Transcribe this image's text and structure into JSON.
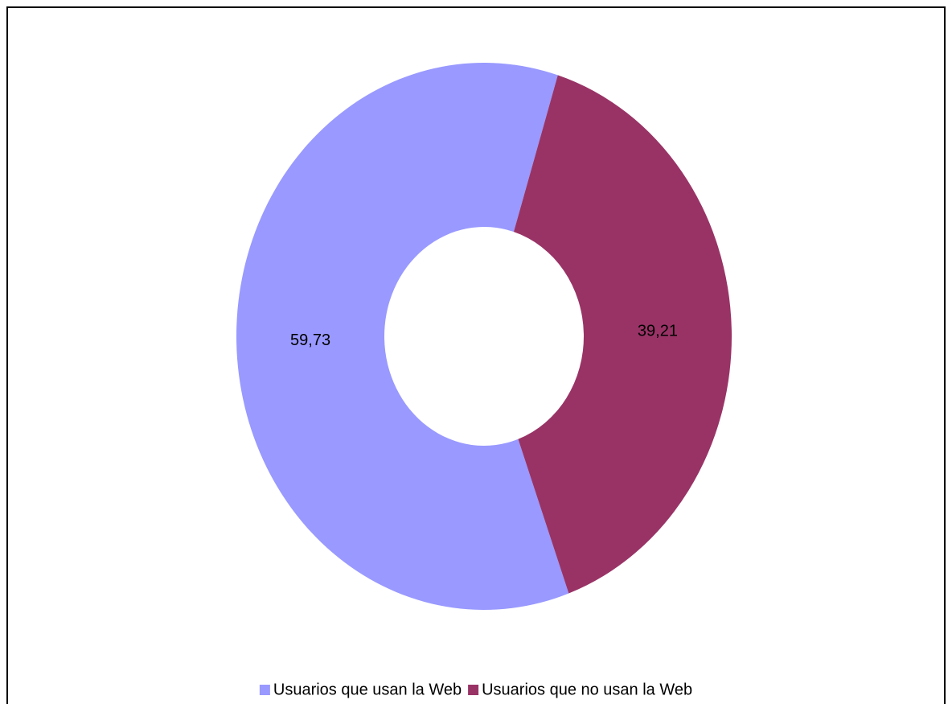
{
  "chart_data": {
    "type": "donut",
    "categories": [
      "Usuarios que usan la Web",
      "Usuarios que no usan la Web"
    ],
    "values": [
      59.73,
      39.21
    ],
    "value_labels": [
      "59,73",
      "39,21"
    ],
    "colors": [
      "#9999ff",
      "#993366"
    ],
    "legend": "bottom"
  }
}
